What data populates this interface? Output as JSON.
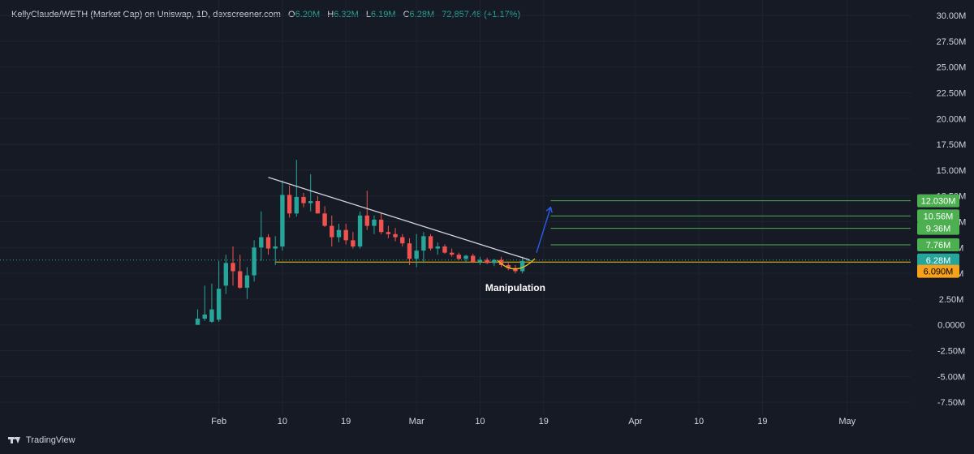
{
  "header": {
    "title": "KellyClaude/WETH (Market Cap) on Uniswap, 1D, dexscreener.com",
    "o_label": "O",
    "o_value": "6.20M",
    "h_label": "H",
    "h_value": "6.32M",
    "l_label": "L",
    "l_value": "6.19M",
    "c_label": "C",
    "c_value": "6.28M",
    "change": "72,857.48 (+1.17%)"
  },
  "footer": {
    "brand": "TradingView"
  },
  "colors": {
    "background": "#161a25",
    "grid": "#1f2430",
    "up": "#26a69a",
    "down": "#ef5350",
    "trendline": "#d1d4dc",
    "support": "#f0c419",
    "target": "#4caf50",
    "projection": "#2962ff",
    "axis_text": "#d1d4dc"
  },
  "chart_data": {
    "type": "candlestick",
    "ylim": [
      -8750000,
      31500000
    ],
    "y_ticks": [
      "30.00M",
      "27.50M",
      "25.00M",
      "22.50M",
      "20.00M",
      "17.50M",
      "15.00M",
      "12.50M",
      "10.00M",
      "7.50M",
      "5.00M",
      "2.50M",
      "0.0000",
      "-2.50M",
      "-5.00M",
      "-7.50M"
    ],
    "y_tick_values": [
      30000000,
      27500000,
      25000000,
      22500000,
      20000000,
      17500000,
      15000000,
      12500000,
      10000000,
      7500000,
      5000000,
      2500000,
      0,
      -2500000,
      -5000000,
      -7500000
    ],
    "x_ticks": [
      {
        "label": "Feb",
        "date": "2025-02-01"
      },
      {
        "label": "10",
        "date": "2025-02-10"
      },
      {
        "label": "19",
        "date": "2025-02-19"
      },
      {
        "label": "Mar",
        "date": "2025-03-01"
      },
      {
        "label": "10",
        "date": "2025-03-10"
      },
      {
        "label": "19",
        "date": "2025-03-19"
      },
      {
        "label": "Apr",
        "date": "2025-04-01"
      },
      {
        "label": "10",
        "date": "2025-04-10"
      },
      {
        "label": "19",
        "date": "2025-04-19"
      },
      {
        "label": "May",
        "date": "2025-05-01"
      }
    ],
    "x_range": [
      "2025-01-01",
      "2025-05-10"
    ],
    "candles": [
      {
        "date": "2025-01-29",
        "o": 0.0,
        "h": 1.5,
        "l": 0.0,
        "c": 0.6
      },
      {
        "date": "2025-01-30",
        "o": 0.6,
        "h": 3.8,
        "l": 0.4,
        "c": 1.0
      },
      {
        "date": "2025-01-31",
        "o": 0.3,
        "h": 4.0,
        "l": 0.2,
        "c": 1.5
      },
      {
        "date": "2025-02-01",
        "o": 0.5,
        "h": 6.2,
        "l": 0.3,
        "c": 3.5
      },
      {
        "date": "2025-02-02",
        "o": 3.8,
        "h": 6.8,
        "l": 3.0,
        "c": 6.0
      },
      {
        "date": "2025-02-03",
        "o": 6.0,
        "h": 7.6,
        "l": 3.8,
        "c": 5.2
      },
      {
        "date": "2025-02-04",
        "o": 5.2,
        "h": 6.8,
        "l": 3.5,
        "c": 3.6
      },
      {
        "date": "2025-02-05",
        "o": 3.6,
        "h": 5.6,
        "l": 2.5,
        "c": 4.8
      },
      {
        "date": "2025-02-06",
        "o": 4.8,
        "h": 8.2,
        "l": 4.2,
        "c": 7.5
      },
      {
        "date": "2025-02-07",
        "o": 7.5,
        "h": 11.0,
        "l": 6.2,
        "c": 8.5
      },
      {
        "date": "2025-02-08",
        "o": 8.5,
        "h": 8.8,
        "l": 6.8,
        "c": 7.4
      },
      {
        "date": "2025-02-09",
        "o": 7.4,
        "h": 8.6,
        "l": 5.8,
        "c": 7.6
      },
      {
        "date": "2025-02-10",
        "o": 7.6,
        "h": 14.0,
        "l": 7.2,
        "c": 12.6
      },
      {
        "date": "2025-02-11",
        "o": 12.6,
        "h": 13.5,
        "l": 10.4,
        "c": 10.8
      },
      {
        "date": "2025-02-12",
        "o": 10.8,
        "h": 16.0,
        "l": 10.5,
        "c": 12.4
      },
      {
        "date": "2025-02-13",
        "o": 12.4,
        "h": 12.8,
        "l": 11.4,
        "c": 11.8
      },
      {
        "date": "2025-02-14",
        "o": 11.8,
        "h": 14.6,
        "l": 11.0,
        "c": 12.0
      },
      {
        "date": "2025-02-15",
        "o": 12.0,
        "h": 12.5,
        "l": 10.8,
        "c": 10.8
      },
      {
        "date": "2025-02-16",
        "o": 10.8,
        "h": 11.5,
        "l": 9.5,
        "c": 9.6
      },
      {
        "date": "2025-02-17",
        "o": 9.6,
        "h": 10.6,
        "l": 7.6,
        "c": 8.5
      },
      {
        "date": "2025-02-18",
        "o": 8.5,
        "h": 9.8,
        "l": 8.0,
        "c": 9.2
      },
      {
        "date": "2025-02-19",
        "o": 9.2,
        "h": 9.8,
        "l": 7.8,
        "c": 8.2
      },
      {
        "date": "2025-02-20",
        "o": 8.2,
        "h": 9.0,
        "l": 7.4,
        "c": 7.6
      },
      {
        "date": "2025-02-21",
        "o": 7.6,
        "h": 11.0,
        "l": 7.4,
        "c": 10.6
      },
      {
        "date": "2025-02-22",
        "o": 10.6,
        "h": 13.0,
        "l": 9.2,
        "c": 9.6
      },
      {
        "date": "2025-02-23",
        "o": 9.6,
        "h": 10.6,
        "l": 8.8,
        "c": 10.2
      },
      {
        "date": "2025-02-24",
        "o": 10.2,
        "h": 10.8,
        "l": 8.8,
        "c": 9.0
      },
      {
        "date": "2025-02-25",
        "o": 9.0,
        "h": 9.6,
        "l": 8.4,
        "c": 8.8
      },
      {
        "date": "2025-02-26",
        "o": 8.8,
        "h": 9.4,
        "l": 8.1,
        "c": 8.5
      },
      {
        "date": "2025-02-27",
        "o": 8.5,
        "h": 8.8,
        "l": 7.6,
        "c": 7.9
      },
      {
        "date": "2025-02-28",
        "o": 7.9,
        "h": 8.4,
        "l": 5.8,
        "c": 6.4
      },
      {
        "date": "2025-03-01",
        "o": 6.4,
        "h": 8.8,
        "l": 5.6,
        "c": 7.2
      },
      {
        "date": "2025-03-02",
        "o": 7.2,
        "h": 9.0,
        "l": 6.0,
        "c": 8.6
      },
      {
        "date": "2025-03-03",
        "o": 8.6,
        "h": 8.8,
        "l": 7.2,
        "c": 7.4
      },
      {
        "date": "2025-03-04",
        "o": 7.4,
        "h": 8.0,
        "l": 6.8,
        "c": 7.6
      },
      {
        "date": "2025-03-05",
        "o": 7.6,
        "h": 7.8,
        "l": 6.9,
        "c": 7.0
      },
      {
        "date": "2025-03-06",
        "o": 7.0,
        "h": 7.4,
        "l": 6.6,
        "c": 6.8
      },
      {
        "date": "2025-03-07",
        "o": 6.8,
        "h": 7.0,
        "l": 6.3,
        "c": 6.4
      },
      {
        "date": "2025-03-08",
        "o": 6.4,
        "h": 6.8,
        "l": 6.0,
        "c": 6.7
      },
      {
        "date": "2025-03-09",
        "o": 6.7,
        "h": 6.9,
        "l": 6.0,
        "c": 6.1
      },
      {
        "date": "2025-03-10",
        "o": 6.1,
        "h": 6.6,
        "l": 5.8,
        "c": 6.3
      },
      {
        "date": "2025-03-11",
        "o": 6.3,
        "h": 6.5,
        "l": 5.9,
        "c": 6.0
      },
      {
        "date": "2025-03-12",
        "o": 6.0,
        "h": 6.4,
        "l": 5.7,
        "c": 6.3
      },
      {
        "date": "2025-03-13",
        "o": 6.3,
        "h": 6.6,
        "l": 5.6,
        "c": 5.8
      },
      {
        "date": "2025-03-14",
        "o": 5.8,
        "h": 6.0,
        "l": 5.3,
        "c": 5.5
      },
      {
        "date": "2025-03-15",
        "o": 5.5,
        "h": 5.8,
        "l": 5.0,
        "c": 5.2
      },
      {
        "date": "2025-03-16",
        "o": 5.2,
        "h": 6.6,
        "l": 5.0,
        "c": 6.2
      },
      {
        "date": "2025-03-17",
        "o": 6.2,
        "h": 6.32,
        "l": 6.19,
        "c": 6.28
      }
    ],
    "value_unit": "M",
    "trendline": {
      "from": {
        "date": "2025-02-08",
        "value": 14.3
      },
      "to": {
        "date": "2025-03-17",
        "value": 6.3
      }
    },
    "support_level": {
      "value": 6.09,
      "label": "6.090M"
    },
    "current_price": {
      "value": 6.28,
      "label": "6.28M"
    },
    "target_levels": [
      {
        "value": 12.03,
        "label": "12.030M"
      },
      {
        "value": 10.56,
        "label": "10.56M"
      },
      {
        "value": 9.36,
        "label": "9.36M"
      },
      {
        "value": 7.76,
        "label": "7.76M"
      }
    ],
    "projection_arrow": {
      "from": {
        "date": "2025-03-18",
        "value": 7.0
      },
      "to": {
        "date": "2025-03-20",
        "value": 11.4
      }
    },
    "annotation": {
      "text": "Manipulation",
      "date": "2025-03-15",
      "value": 3.6
    }
  }
}
